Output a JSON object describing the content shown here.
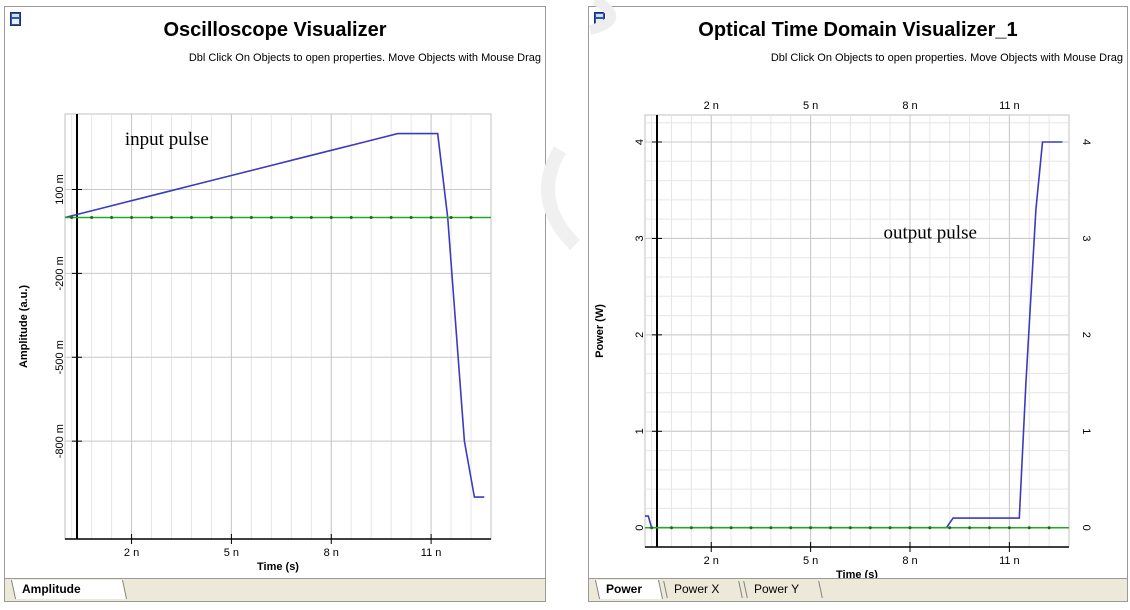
{
  "colors": {
    "trace": "#3b3bbf",
    "baseline": "#22aa22",
    "grid_major": "#c8c8c8",
    "grid_minor": "#e6e6e6",
    "axis": "#000000",
    "tab_bar": "#ece9d8"
  },
  "left": {
    "icon": "visualizer-window-icon",
    "title": "Oscilloscope Visualizer",
    "subtitle": "Dbl Click On Objects to open properties.  Move Objects with Mouse Drag",
    "tabs": [
      {
        "label": "Amplitude",
        "active": true
      }
    ]
  },
  "right": {
    "icon": "visualizer-window-icon",
    "title": "Optical Time Domain Visualizer_1",
    "subtitle": "Dbl Click On Objects to open properties.  Move Objects with Mouse Drag",
    "tabs": [
      {
        "label": "Power",
        "active": true
      },
      {
        "label": "Power X",
        "active": false
      },
      {
        "label": "Power Y",
        "active": false
      }
    ]
  },
  "chart_data": [
    {
      "type": "line",
      "title": "Oscilloscope Visualizer",
      "xlabel": "Time (s)",
      "ylabel": "Amplitude (a.u.)",
      "xlim": [
        0,
        1.28e-08
      ],
      "ylim": [
        -1.15,
        0.37
      ],
      "x_ticks": [
        {
          "value": 2e-09,
          "label": "2 n"
        },
        {
          "value": 5e-09,
          "label": "5 n"
        },
        {
          "value": 8e-09,
          "label": "8 n"
        },
        {
          "value": 1.1e-08,
          "label": "11 n"
        }
      ],
      "y_ticks": [
        {
          "value": 0.1,
          "label": "100 m"
        },
        {
          "value": -0.2,
          "label": "-200 m"
        },
        {
          "value": -0.5,
          "label": "-500 m"
        },
        {
          "value": -0.8,
          "label": "-800 m"
        }
      ],
      "x_tick_labels_position": "bottom",
      "grid": true,
      "annotations": [
        {
          "text": "input pulse",
          "x": 1.8e-09,
          "y": 0.26
        }
      ],
      "series": [
        {
          "role": "signal",
          "x": [
            0,
            1e-09,
            2e-09,
            3e-09,
            4e-09,
            5e-09,
            6e-09,
            7e-09,
            8e-09,
            9e-09,
            1e-08,
            1.05e-08,
            1.12e-08,
            1.15e-08,
            1.2e-08,
            1.23e-08,
            1.26e-08
          ],
          "y": [
            0,
            0.03,
            0.06,
            0.09,
            0.12,
            0.15,
            0.18,
            0.21,
            0.24,
            0.27,
            0.3,
            0.3,
            0.3,
            0,
            -0.8,
            -1.0,
            -1.0
          ]
        },
        {
          "role": "baseline",
          "x": [
            0,
            1.28e-08
          ],
          "y": [
            0,
            0
          ]
        }
      ]
    },
    {
      "type": "line",
      "title": "Optical Time Domain Visualizer_1",
      "xlabel": "Time (s)",
      "ylabel": "Power (W)",
      "xlim": [
        0,
        1.28e-08
      ],
      "ylim": [
        -0.2,
        4.28
      ],
      "x_ticks": [
        {
          "value": 2e-09,
          "label": "2 n"
        },
        {
          "value": 5e-09,
          "label": "5 n"
        },
        {
          "value": 8e-09,
          "label": "8 n"
        },
        {
          "value": 1.1e-08,
          "label": "11 n"
        }
      ],
      "y_ticks": [
        {
          "value": 0,
          "label": "0"
        },
        {
          "value": 1,
          "label": "1"
        },
        {
          "value": 2,
          "label": "2"
        },
        {
          "value": 3,
          "label": "3"
        },
        {
          "value": 4,
          "label": "4"
        }
      ],
      "x_tick_labels_position": "top-and-bottom",
      "y_tick_labels_position": "left-and-right",
      "grid": true,
      "annotations": [
        {
          "text": "output pulse",
          "x": 7.2e-09,
          "y": 3.0
        }
      ],
      "series": [
        {
          "role": "signal",
          "x": [
            0,
            1e-10,
            2e-10,
            1e-09,
            4e-09,
            8e-09,
            9.1e-09,
            9.3e-09,
            1e-08,
            1.1e-08,
            1.13e-08,
            1.15e-08,
            1.18e-08,
            1.2e-08,
            1.26e-08
          ],
          "y": [
            0.12,
            0.12,
            0,
            0,
            0,
            0,
            0,
            0.1,
            0.1,
            0.1,
            0.1,
            1.5,
            3.3,
            4.0,
            4.0
          ]
        },
        {
          "role": "baseline",
          "x": [
            0,
            1.28e-08
          ],
          "y": [
            0,
            0
          ]
        }
      ]
    }
  ]
}
